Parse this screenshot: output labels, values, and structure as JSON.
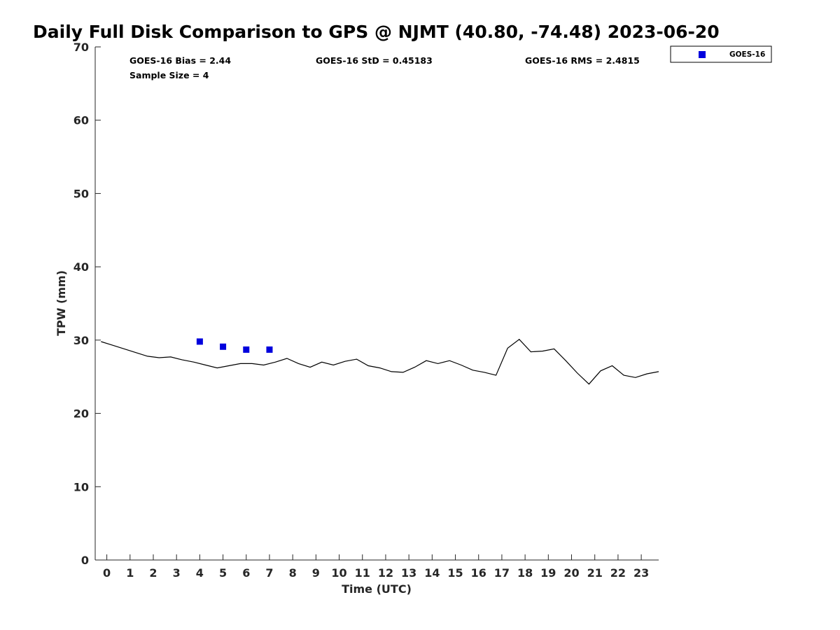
{
  "chart_data": {
    "type": "scatter",
    "title": "Daily Full Disk Comparison to GPS @ NJMT (40.80, -74.48) 2023-06-20",
    "xlabel": "Time (UTC)",
    "ylabel": "TPW (mm)",
    "xlim": [
      -0.5,
      23.75
    ],
    "ylim": [
      0,
      70
    ],
    "x_ticks": [
      0,
      1,
      2,
      3,
      4,
      5,
      6,
      7,
      8,
      9,
      10,
      11,
      12,
      13,
      14,
      15,
      16,
      17,
      18,
      19,
      20,
      21,
      22,
      23
    ],
    "y_ticks": [
      0,
      10,
      20,
      30,
      40,
      50,
      60,
      70
    ],
    "grid": false,
    "legend_position": "top-right outside",
    "stats": {
      "bias": "GOES-16 Bias = 2.44",
      "std": "GOES-16 StD = 0.45183",
      "rms": "GOES-16 RMS = 2.4815",
      "sample_size": "Sample Size = 4"
    },
    "series": [
      {
        "name": "GOES-16",
        "kind": "scatter",
        "marker": "square",
        "color": "#0000dd",
        "x": [
          4,
          5,
          6,
          7
        ],
        "y": [
          29.8,
          29.1,
          28.7,
          28.7
        ]
      },
      {
        "kind": "line",
        "color": "#000000",
        "x": [
          -0.25,
          0.25,
          0.75,
          1.25,
          1.75,
          2.25,
          2.75,
          3.25,
          3.75,
          4.25,
          4.75,
          5.25,
          5.75,
          6.25,
          6.75,
          7.25,
          7.75,
          8.25,
          8.75,
          9.25,
          9.75,
          10.25,
          10.75,
          11.25,
          11.75,
          12.25,
          12.75,
          13.25,
          13.75,
          14.25,
          14.75,
          15.25,
          15.75,
          16.25,
          16.75,
          17.25,
          17.75,
          18.25,
          18.75,
          19.25,
          19.75,
          20.25,
          20.75,
          21.25,
          21.75,
          22.25,
          22.75,
          23.25,
          23.75
        ],
        "y": [
          29.8,
          29.3,
          28.8,
          28.3,
          27.8,
          27.6,
          27.7,
          27.3,
          27.0,
          26.6,
          26.2,
          26.5,
          26.8,
          26.8,
          26.6,
          27.0,
          27.5,
          26.8,
          26.3,
          27.0,
          26.6,
          27.1,
          27.4,
          26.5,
          26.2,
          25.7,
          25.6,
          26.3,
          27.2,
          26.8,
          27.2,
          26.6,
          25.9,
          25.6,
          25.2,
          28.9,
          30.1,
          28.4,
          28.5,
          28.8,
          27.2,
          25.5,
          24.0,
          25.8,
          26.5,
          25.2,
          24.9,
          25.4,
          25.7
        ]
      }
    ]
  }
}
